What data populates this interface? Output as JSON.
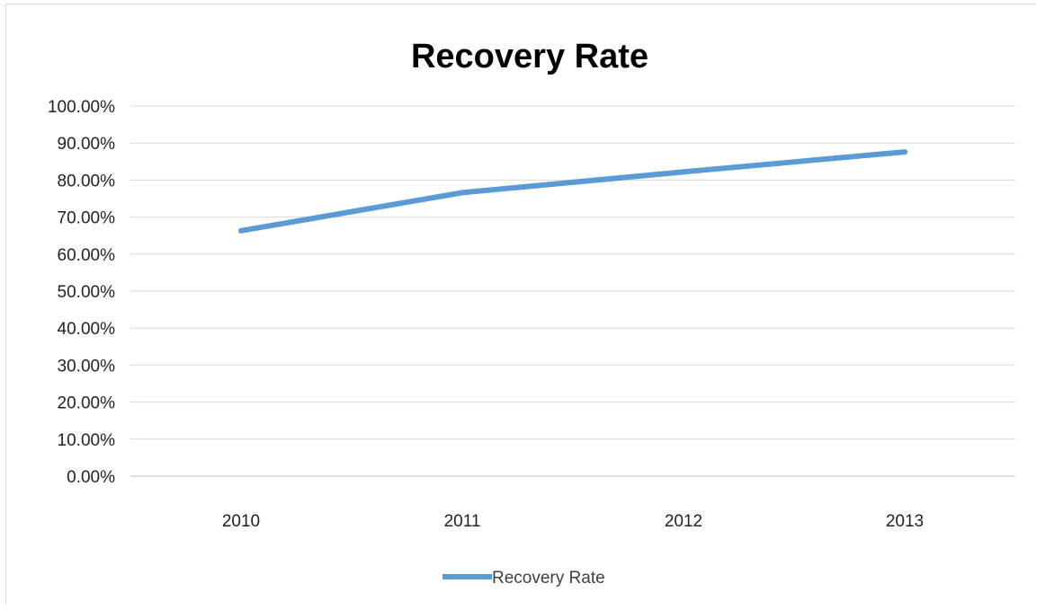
{
  "chart_data": {
    "type": "line",
    "title": "Recovery Rate",
    "xlabel": "",
    "ylabel": "",
    "categories": [
      "2010",
      "2011",
      "2012",
      "2013"
    ],
    "series": [
      {
        "name": "Recovery Rate",
        "values": [
          0.663,
          0.766,
          0.822,
          0.876
        ],
        "color": "#5b9bd5"
      }
    ],
    "ylim": [
      0,
      1
    ],
    "y_ticks": [
      0,
      0.1,
      0.2,
      0.3,
      0.4,
      0.5,
      0.6,
      0.7,
      0.8,
      0.9,
      1.0
    ],
    "y_tick_labels": [
      "0.00%",
      "10.00%",
      "20.00%",
      "30.00%",
      "40.00%",
      "50.00%",
      "60.00%",
      "70.00%",
      "80.00%",
      "90.00%",
      "100.00%"
    ],
    "grid": true,
    "legend_position": "bottom",
    "colors": {
      "gridline": "#d9d9d9",
      "axis": "#bfbfbf"
    }
  }
}
